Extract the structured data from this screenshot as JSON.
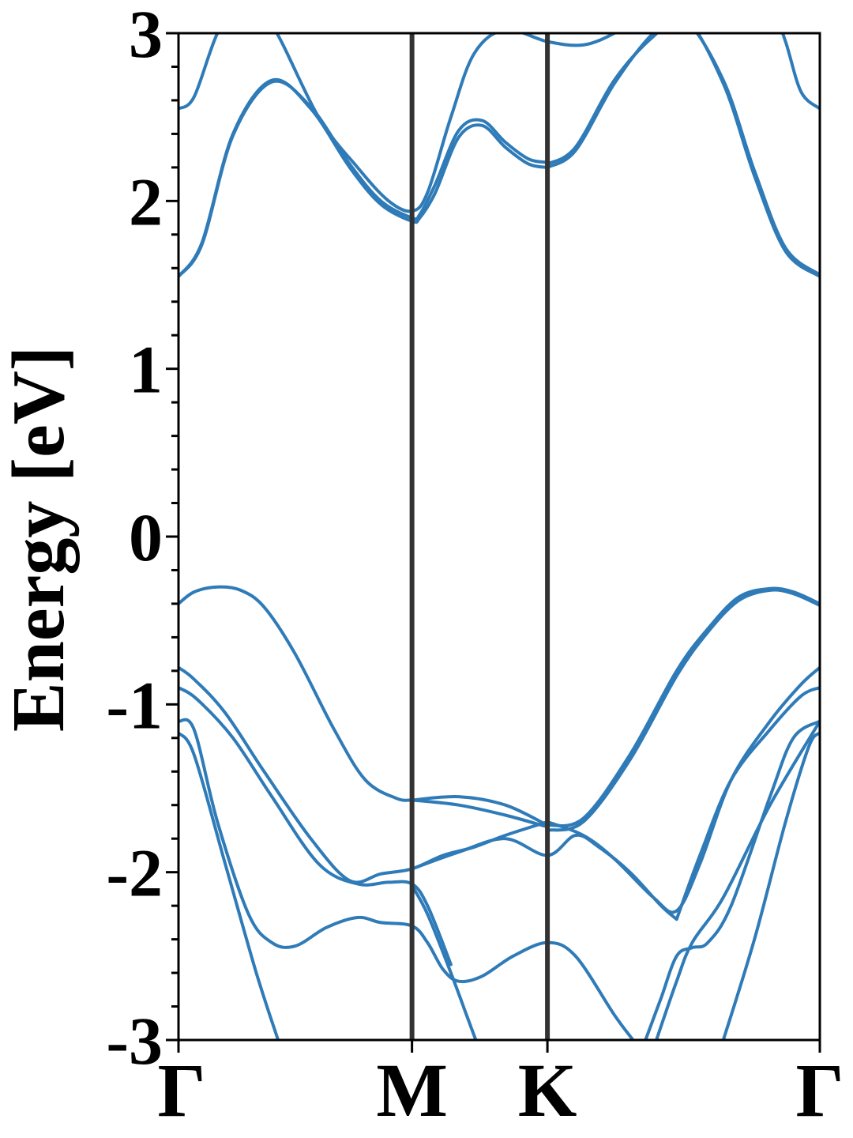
{
  "chart_data": {
    "type": "line",
    "title": "",
    "xlabel": "",
    "ylabel": "Energy [eV]",
    "xlim": [
      0,
      4.12
    ],
    "ylim": [
      -3,
      3
    ],
    "x_ticks": [
      {
        "position": 0,
        "label": "Γ"
      },
      {
        "position": 1.5,
        "label": "M"
      },
      {
        "position": 2.37,
        "label": "K"
      },
      {
        "position": 4.12,
        "label": "Γ"
      }
    ],
    "y_ticks": [
      {
        "value": -3,
        "label": "-3"
      },
      {
        "value": -2,
        "label": "-2"
      },
      {
        "value": -1,
        "label": "-1"
      },
      {
        "value": 0,
        "label": "0"
      },
      {
        "value": 1,
        "label": "1"
      },
      {
        "value": 2,
        "label": "2"
      },
      {
        "value": 3,
        "label": "3"
      }
    ],
    "y_minor_step": 0.2,
    "vertical_lines": [
      1.5,
      2.37
    ],
    "grid": false,
    "legend": "none",
    "colors": {
      "bands": "#2f7bb8",
      "symmetry_lines": "#333333",
      "axes": "#000000"
    },
    "series": [
      {
        "x": [
          0,
          0.1,
          0.25,
          0.4,
          0.55,
          0.75,
          1.0,
          1.2,
          1.4,
          1.5
        ],
        "y": [
          -0.4,
          -0.33,
          -0.3,
          -0.32,
          -0.42,
          -0.7,
          -1.15,
          -1.45,
          -1.56,
          -1.57
        ]
      },
      {
        "x": [
          1.5,
          1.8,
          2.1,
          2.37
        ],
        "y": [
          -1.57,
          -1.55,
          -1.6,
          -1.72
        ]
      },
      {
        "x": [
          1.5,
          1.8,
          2.1,
          2.37
        ],
        "y": [
          -1.57,
          -1.6,
          -1.66,
          -1.73
        ]
      },
      {
        "x": [
          2.37,
          2.6,
          2.9,
          3.2,
          3.4,
          3.6,
          3.8,
          3.95,
          4.12
        ],
        "y": [
          -1.72,
          -1.68,
          -1.3,
          -0.8,
          -0.55,
          -0.36,
          -0.31,
          -0.33,
          -0.4
        ]
      },
      {
        "x": [
          2.37,
          2.6,
          2.9,
          3.2,
          3.4,
          3.6,
          3.8,
          3.95,
          4.12
        ],
        "y": [
          -1.75,
          -1.7,
          -1.33,
          -0.83,
          -0.57,
          -0.38,
          -0.32,
          -0.34,
          -0.41
        ]
      },
      {
        "x": [
          0,
          0.1,
          0.3,
          0.55,
          0.85,
          1.1,
          1.3,
          1.5,
          1.7,
          1.9,
          2.1,
          2.37
        ],
        "y": [
          -0.78,
          -0.85,
          -1.05,
          -1.4,
          -1.8,
          -2.05,
          -2.01,
          -1.98,
          -1.9,
          -1.85,
          -1.78,
          -1.7
        ]
      },
      {
        "x": [
          2.37,
          2.6,
          2.8,
          3.05,
          3.2,
          3.35,
          3.55,
          3.8,
          4.0,
          4.12
        ],
        "y": [
          -1.7,
          -1.78,
          -1.92,
          -2.15,
          -2.23,
          -1.95,
          -1.45,
          -1.1,
          -0.88,
          -0.78
        ]
      },
      {
        "x": [
          0,
          0.12,
          0.35,
          0.6,
          0.9,
          1.15,
          1.35,
          1.5,
          1.6,
          1.75
        ],
        "y": [
          -0.9,
          -0.97,
          -1.2,
          -1.55,
          -1.95,
          -2.07,
          -2.06,
          -2.07,
          -2.2,
          -2.55
        ]
      },
      {
        "x": [
          1.5,
          1.8,
          2.1,
          2.37,
          2.55,
          2.7,
          2.9,
          3.1,
          3.2
        ],
        "y": [
          -1.98,
          -1.88,
          -1.8,
          -1.9,
          -1.78,
          -1.85,
          -2.0,
          -2.2,
          -2.28
        ]
      },
      {
        "x": [
          3.2,
          3.35,
          3.55,
          3.8,
          4.0,
          4.12
        ],
        "y": [
          -2.28,
          -1.9,
          -1.45,
          -1.15,
          -0.95,
          -0.9
        ]
      },
      {
        "x": [
          0,
          0.1,
          0.25,
          0.45,
          0.6,
          0.75,
          0.95,
          1.15,
          1.3,
          1.5,
          1.6,
          1.7,
          1.8,
          1.95,
          2.15,
          2.37,
          2.55,
          2.8,
          2.92
        ],
        "y": [
          -1.1,
          -1.15,
          -1.7,
          -2.25,
          -2.42,
          -2.44,
          -2.33,
          -2.27,
          -2.3,
          -2.32,
          -2.42,
          -2.58,
          -2.65,
          -2.62,
          -2.5,
          -2.42,
          -2.5,
          -2.85,
          -3.0
        ]
      },
      {
        "x": [
          1.5,
          1.6,
          1.75,
          1.85,
          1.91
        ],
        "y": [
          -2.08,
          -2.25,
          -2.6,
          -2.85,
          -3.0
        ]
      },
      {
        "x": [
          3.0,
          3.1,
          3.2,
          3.3,
          3.4,
          3.55,
          3.8,
          3.95,
          4.12
        ],
        "y": [
          -3.0,
          -2.75,
          -2.5,
          -2.45,
          -2.42,
          -2.2,
          -1.55,
          -1.2,
          -1.1
        ]
      },
      {
        "x": [
          3.07,
          3.2,
          3.3,
          3.5,
          3.8,
          4.12
        ],
        "y": [
          -3.0,
          -2.65,
          -2.42,
          -2.15,
          -1.6,
          -1.1
        ]
      },
      {
        "x": [
          0,
          0.1,
          0.3,
          0.5,
          0.64
        ],
        "y": [
          -1.17,
          -1.3,
          -1.95,
          -2.6,
          -3.0
        ]
      },
      {
        "x": [
          3.5,
          3.7,
          3.9,
          4.05,
          4.12
        ],
        "y": [
          -3.0,
          -2.4,
          -1.7,
          -1.25,
          -1.17
        ]
      },
      {
        "x": [
          0,
          0.15,
          0.35,
          0.6,
          0.85,
          1.1,
          1.3,
          1.5,
          1.55,
          1.65,
          1.8,
          1.95,
          2.1,
          2.25,
          2.37
        ],
        "y": [
          1.55,
          1.75,
          2.4,
          2.72,
          2.55,
          2.2,
          1.98,
          1.88,
          1.9,
          2.05,
          2.38,
          2.45,
          2.32,
          2.22,
          2.2
        ]
      },
      {
        "x": [
          0,
          0.15,
          0.35,
          0.6,
          0.85,
          1.1,
          1.3,
          1.5,
          1.55,
          1.65,
          1.8,
          1.95,
          2.1,
          2.25,
          2.37
        ],
        "y": [
          1.55,
          1.74,
          2.39,
          2.71,
          2.56,
          2.22,
          2.0,
          1.9,
          1.92,
          2.1,
          2.42,
          2.48,
          2.35,
          2.25,
          2.23
        ]
      },
      {
        "x": [
          2.37,
          2.55,
          2.8,
          3.05,
          3.25,
          3.5,
          3.7,
          3.9,
          4.12
        ],
        "y": [
          2.2,
          2.3,
          2.7,
          3.0,
          3.1,
          2.7,
          2.15,
          1.7,
          1.55
        ]
      },
      {
        "x": [
          2.37,
          2.55,
          2.8,
          3.05,
          3.25,
          3.5,
          3.7,
          3.9,
          4.12
        ],
        "y": [
          2.22,
          2.32,
          2.72,
          2.98,
          3.08,
          2.72,
          2.18,
          1.72,
          1.56
        ]
      },
      {
        "x": [
          0,
          0.1,
          0.25,
          0.4,
          0.6,
          0.9,
          1.15,
          1.35,
          1.5,
          1.6,
          1.75,
          1.9,
          2.1,
          2.37,
          2.6,
          2.8,
          2.95
        ],
        "y": [
          2.55,
          2.62,
          3.0,
          3.2,
          3.05,
          2.5,
          2.2,
          2.0,
          1.94,
          2.05,
          2.5,
          2.88,
          3.02,
          2.95,
          2.93,
          3.0,
          3.1
        ]
      },
      {
        "x": [
          3.8,
          3.9,
          4.0,
          4.12
        ],
        "y": [
          3.2,
          2.95,
          2.65,
          2.55
        ]
      }
    ]
  }
}
